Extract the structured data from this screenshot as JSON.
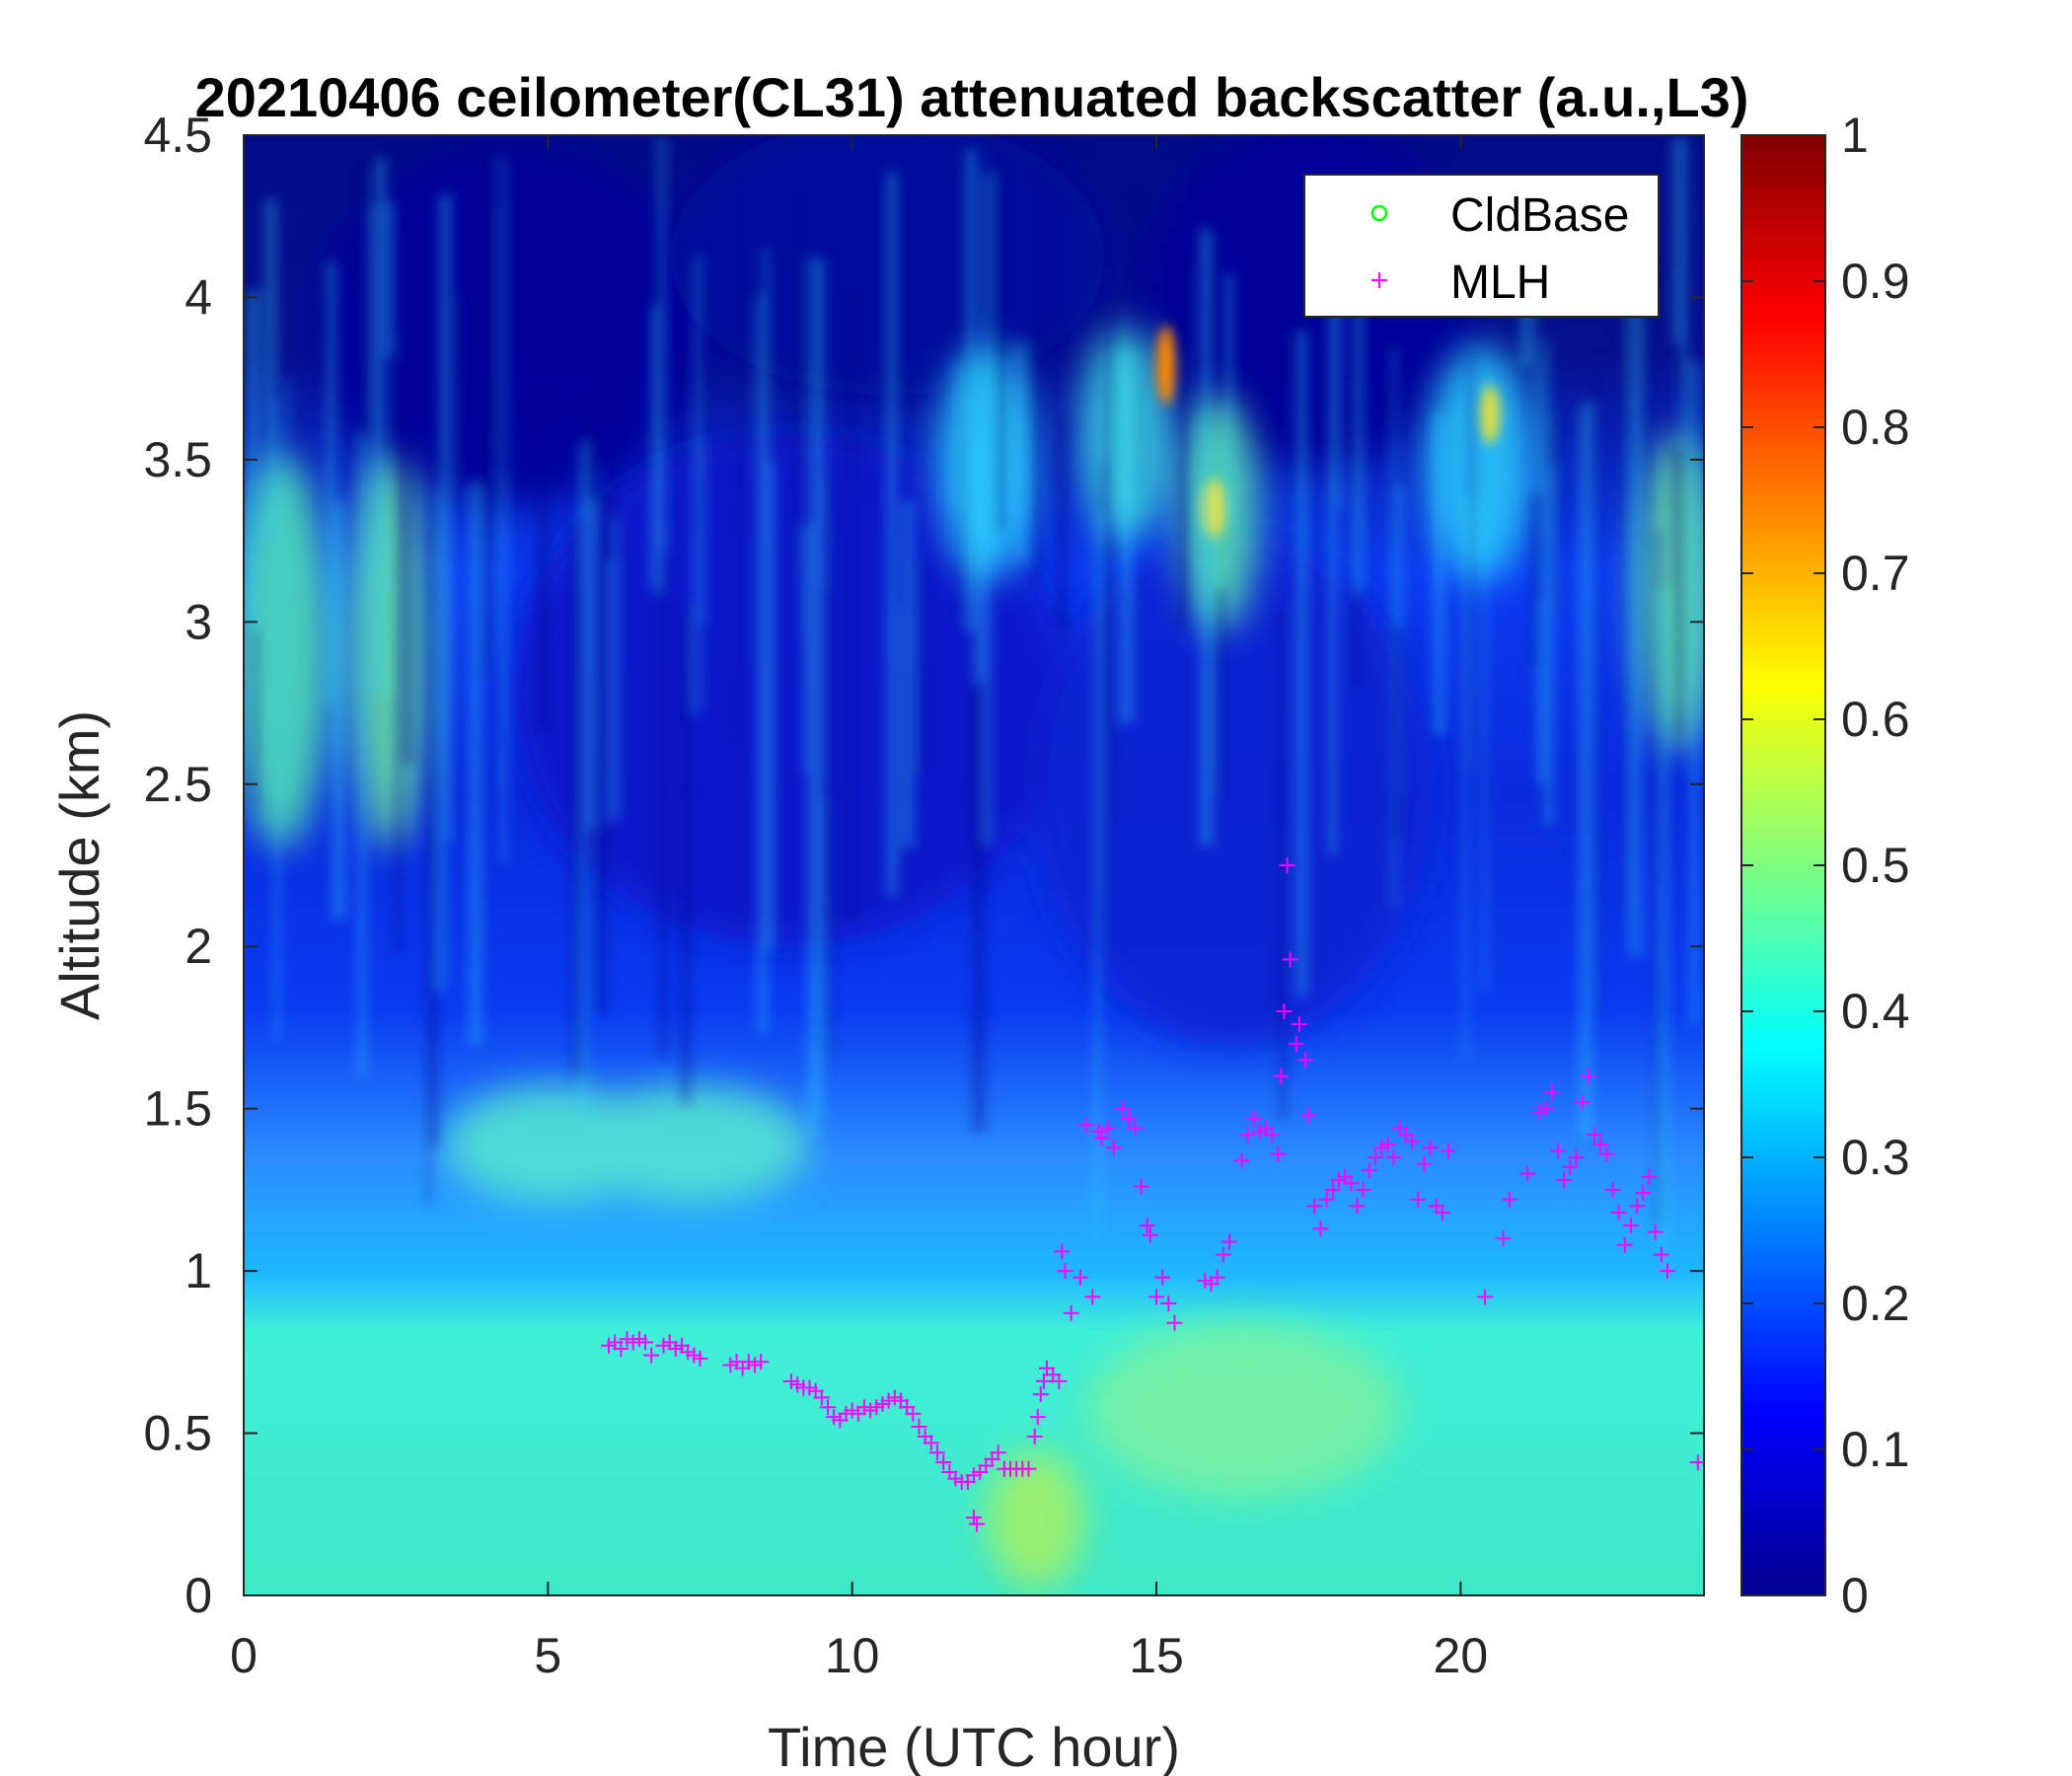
{
  "chart_data": {
    "type": "heatmap",
    "title": "20210406 ceilometer(CL31) attenuated backscatter (a.u.,L3)",
    "xlabel": "Time (UTC hour)",
    "ylabel": "Altitude (km)",
    "xlim": [
      0,
      24
    ],
    "ylim": [
      0,
      4.5
    ],
    "xticks": [
      "0",
      "5",
      "10",
      "15",
      "20"
    ],
    "xtick_values": [
      0,
      5,
      10,
      15,
      20
    ],
    "yticks": [
      "0",
      "0.5",
      "1",
      "1.5",
      "2",
      "2.5",
      "3",
      "3.5",
      "4",
      "4.5"
    ],
    "ytick_values": [
      0,
      0.5,
      1,
      1.5,
      2,
      2.5,
      3,
      3.5,
      4,
      4.5
    ],
    "colorbar": {
      "colormap": "jet",
      "range": [
        0,
        1
      ],
      "ticks": [
        "0",
        "0.1",
        "0.2",
        "0.3",
        "0.4",
        "0.5",
        "0.6",
        "0.7",
        "0.8",
        "0.9",
        "1"
      ],
      "tick_values": [
        0,
        0.1,
        0.2,
        0.3,
        0.4,
        0.5,
        0.6,
        0.7,
        0.8,
        0.9,
        1
      ]
    },
    "legend": {
      "placement": "top-right",
      "entries": [
        {
          "label": "CldBase",
          "marker": "o",
          "color": "#00ff00"
        },
        {
          "label": "MLH",
          "marker": "+",
          "color": "#ff00ff"
        }
      ]
    },
    "series": [
      {
        "name": "CldBase",
        "points": []
      },
      {
        "name": "MLH",
        "points": [
          [
            6.0,
            0.77
          ],
          [
            6.1,
            0.78
          ],
          [
            6.2,
            0.76
          ],
          [
            6.3,
            0.79
          ],
          [
            6.4,
            0.78
          ],
          [
            6.5,
            0.79
          ],
          [
            6.6,
            0.78
          ],
          [
            6.7,
            0.74
          ],
          [
            6.9,
            0.77
          ],
          [
            7.0,
            0.78
          ],
          [
            7.1,
            0.76
          ],
          [
            7.2,
            0.77
          ],
          [
            7.3,
            0.75
          ],
          [
            7.4,
            0.74
          ],
          [
            7.5,
            0.73
          ],
          [
            8.0,
            0.71
          ],
          [
            8.1,
            0.72
          ],
          [
            8.2,
            0.7
          ],
          [
            8.3,
            0.72
          ],
          [
            8.4,
            0.71
          ],
          [
            8.5,
            0.72
          ],
          [
            9.0,
            0.66
          ],
          [
            9.1,
            0.65
          ],
          [
            9.2,
            0.64
          ],
          [
            9.3,
            0.64
          ],
          [
            9.4,
            0.63
          ],
          [
            9.5,
            0.61
          ],
          [
            9.6,
            0.58
          ],
          [
            9.7,
            0.55
          ],
          [
            9.8,
            0.54
          ],
          [
            9.9,
            0.56
          ],
          [
            10.0,
            0.57
          ],
          [
            10.1,
            0.56
          ],
          [
            10.2,
            0.58
          ],
          [
            10.3,
            0.57
          ],
          [
            10.4,
            0.58
          ],
          [
            10.5,
            0.59
          ],
          [
            10.6,
            0.6
          ],
          [
            10.7,
            0.61
          ],
          [
            10.8,
            0.6
          ],
          [
            10.9,
            0.58
          ],
          [
            11.0,
            0.56
          ],
          [
            11.1,
            0.52
          ],
          [
            11.2,
            0.49
          ],
          [
            11.3,
            0.47
          ],
          [
            11.4,
            0.44
          ],
          [
            11.5,
            0.41
          ],
          [
            11.6,
            0.38
          ],
          [
            11.7,
            0.36
          ],
          [
            11.8,
            0.35
          ],
          [
            11.9,
            0.35
          ],
          [
            12.0,
            0.37
          ],
          [
            12.1,
            0.38
          ],
          [
            12.2,
            0.4
          ],
          [
            12.3,
            0.42
          ],
          [
            12.4,
            0.44
          ],
          [
            12.0,
            0.24
          ],
          [
            12.05,
            0.22
          ],
          [
            12.5,
            0.39
          ],
          [
            12.6,
            0.39
          ],
          [
            12.7,
            0.39
          ],
          [
            12.8,
            0.39
          ],
          [
            12.9,
            0.39
          ],
          [
            13.0,
            0.49
          ],
          [
            13.05,
            0.55
          ],
          [
            13.1,
            0.62
          ],
          [
            13.15,
            0.66
          ],
          [
            13.2,
            0.7
          ],
          [
            13.3,
            0.68
          ],
          [
            13.4,
            0.66
          ],
          [
            13.45,
            1.06
          ],
          [
            13.5,
            1.0
          ],
          [
            13.6,
            0.87
          ],
          [
            13.75,
            0.98
          ],
          [
            13.85,
            1.45
          ],
          [
            13.95,
            0.92
          ],
          [
            14.05,
            1.43
          ],
          [
            14.1,
            1.41
          ],
          [
            14.2,
            1.44
          ],
          [
            14.3,
            1.38
          ],
          [
            14.45,
            1.5
          ],
          [
            14.55,
            1.47
          ],
          [
            14.65,
            1.44
          ],
          [
            14.75,
            1.26
          ],
          [
            14.85,
            1.14
          ],
          [
            14.9,
            1.11
          ],
          [
            15.0,
            0.92
          ],
          [
            15.1,
            0.98
          ],
          [
            15.2,
            0.9
          ],
          [
            15.3,
            0.84
          ],
          [
            15.8,
            0.97
          ],
          [
            15.9,
            0.96
          ],
          [
            16.0,
            0.98
          ],
          [
            16.1,
            1.05
          ],
          [
            16.2,
            1.09
          ],
          [
            16.4,
            1.34
          ],
          [
            16.5,
            1.42
          ],
          [
            16.6,
            1.47
          ],
          [
            16.7,
            1.43
          ],
          [
            16.8,
            1.44
          ],
          [
            16.9,
            1.42
          ],
          [
            17.0,
            1.36
          ],
          [
            17.05,
            1.6
          ],
          [
            17.1,
            1.8
          ],
          [
            17.15,
            2.25
          ],
          [
            17.2,
            1.96
          ],
          [
            17.3,
            1.7
          ],
          [
            17.35,
            1.76
          ],
          [
            17.45,
            1.65
          ],
          [
            17.5,
            1.48
          ],
          [
            17.6,
            1.2
          ],
          [
            17.7,
            1.13
          ],
          [
            17.8,
            1.22
          ],
          [
            17.9,
            1.25
          ],
          [
            18.0,
            1.28
          ],
          [
            18.1,
            1.29
          ],
          [
            18.2,
            1.27
          ],
          [
            18.3,
            1.2
          ],
          [
            18.4,
            1.25
          ],
          [
            18.5,
            1.31
          ],
          [
            18.6,
            1.35
          ],
          [
            18.7,
            1.38
          ],
          [
            18.8,
            1.39
          ],
          [
            18.9,
            1.35
          ],
          [
            19.0,
            1.44
          ],
          [
            19.1,
            1.42
          ],
          [
            19.2,
            1.4
          ],
          [
            19.3,
            1.22
          ],
          [
            19.4,
            1.33
          ],
          [
            19.5,
            1.38
          ],
          [
            19.6,
            1.2
          ],
          [
            19.7,
            1.18
          ],
          [
            19.8,
            1.37
          ],
          [
            20.4,
            0.92
          ],
          [
            20.7,
            1.1
          ],
          [
            20.8,
            1.22
          ],
          [
            21.1,
            1.3
          ],
          [
            21.3,
            1.49
          ],
          [
            21.4,
            1.5
          ],
          [
            21.5,
            1.55
          ],
          [
            21.6,
            1.37
          ],
          [
            21.7,
            1.28
          ],
          [
            21.8,
            1.32
          ],
          [
            21.9,
            1.35
          ],
          [
            22.0,
            1.52
          ],
          [
            22.1,
            1.6
          ],
          [
            22.2,
            1.42
          ],
          [
            22.3,
            1.39
          ],
          [
            22.4,
            1.36
          ],
          [
            22.5,
            1.25
          ],
          [
            22.6,
            1.18
          ],
          [
            22.7,
            1.08
          ],
          [
            22.8,
            1.14
          ],
          [
            22.9,
            1.2
          ],
          [
            23.0,
            1.24
          ],
          [
            23.1,
            1.29
          ],
          [
            23.2,
            1.12
          ],
          [
            23.3,
            1.05
          ],
          [
            23.4,
            1.0
          ],
          [
            23.9,
            0.41
          ]
        ]
      }
    ],
    "background_field_description_values": {
      "surface_layer_value": 0.45,
      "residual_layer_value": 0.35,
      "free_troposphere_value": 0.08
    }
  }
}
